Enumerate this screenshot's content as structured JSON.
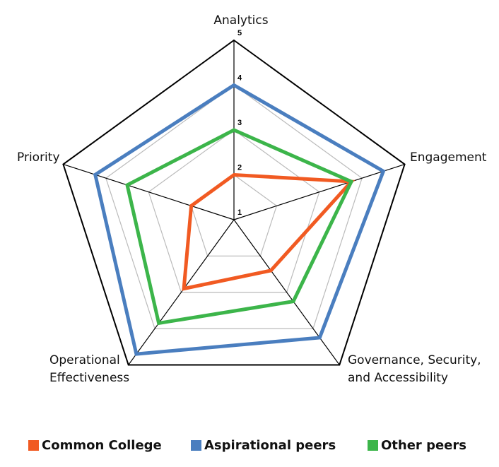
{
  "chart_data": {
    "type": "radar",
    "categories": [
      "Analytics",
      "Engagement",
      "Governance, Security,\nand Accessibility",
      "Operational\nEffectiveness",
      "Priority"
    ],
    "ylim": [
      1,
      5
    ],
    "yticks": [
      1,
      2,
      3,
      4,
      5
    ],
    "series": [
      {
        "name": "Common College",
        "color": "#f15a22",
        "values": [
          2,
          3.75,
          2.4,
          2.9,
          2.0
        ]
      },
      {
        "name": "Aspirational peers",
        "color": "#4a7ebf",
        "values": [
          4,
          4.5,
          4.25,
          4.7,
          4.25
        ]
      },
      {
        "name": "Other peers",
        "color": "#3cb54a",
        "values": [
          3,
          3.75,
          3.25,
          3.85,
          3.5
        ]
      }
    ]
  }
}
